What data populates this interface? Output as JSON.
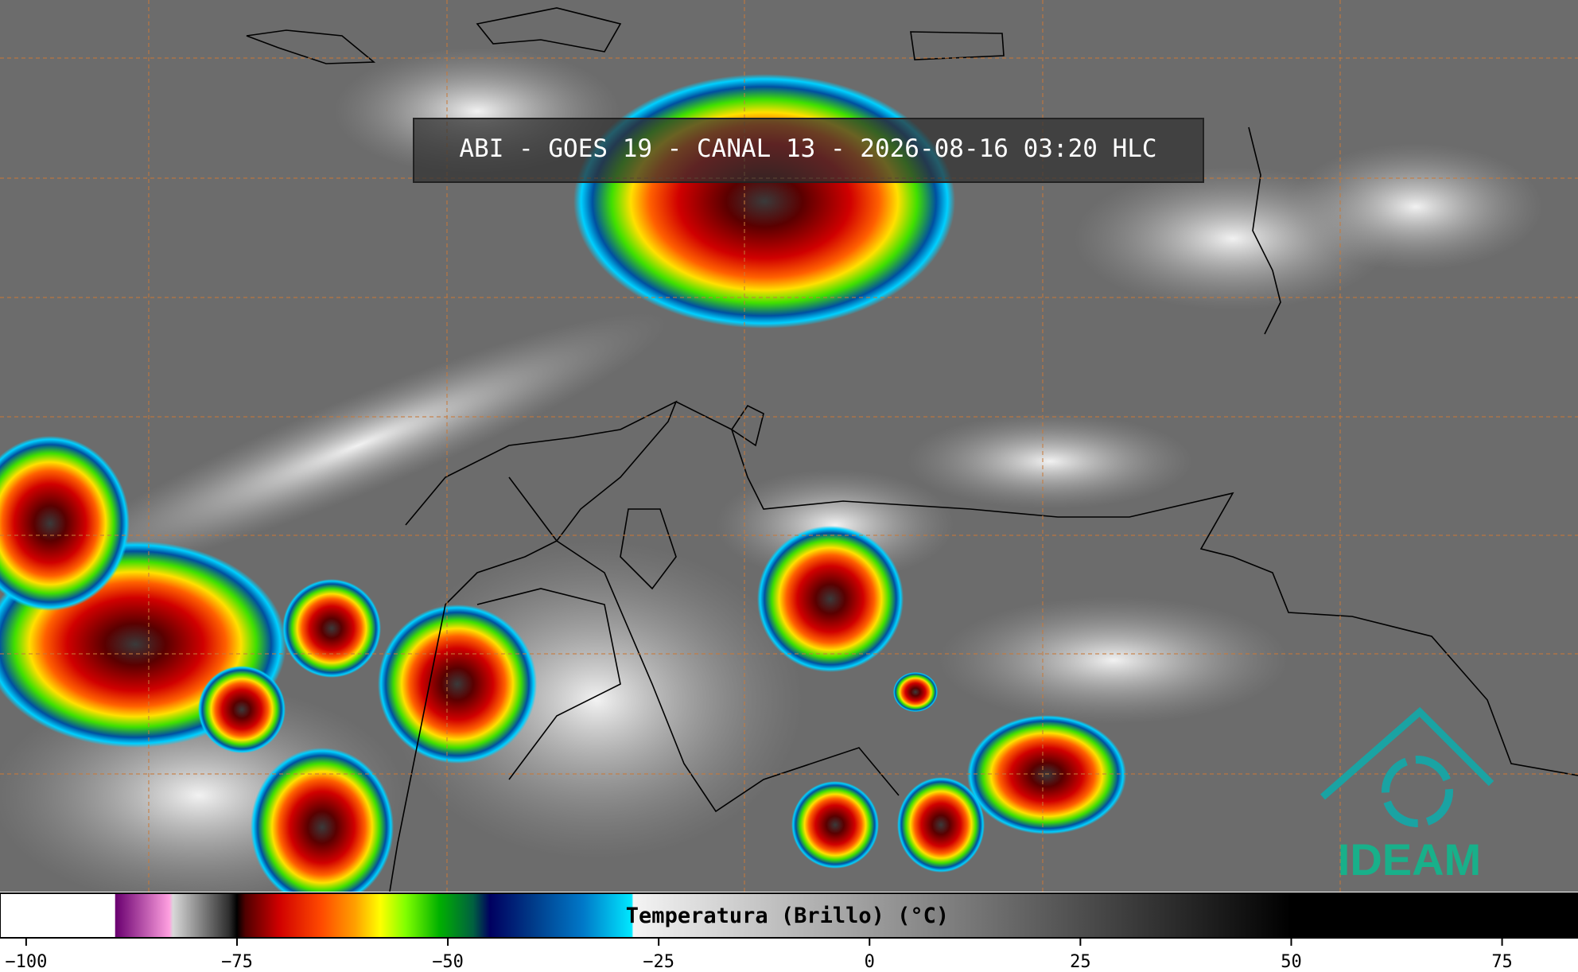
{
  "title": "ABI - GOES 19 - CANAL 13 - 2026-08-16 03:20 HLC",
  "logo": "IDEAM",
  "colorbar": {
    "label": "Temperatura (Brillo) (°C)",
    "lim": [
      -103.1,
      84
    ],
    "ticks": [
      {
        "value": -100,
        "label": "−100"
      },
      {
        "value": -75,
        "label": "−75"
      },
      {
        "value": -50,
        "label": "−50"
      },
      {
        "value": -25,
        "label": "−25"
      },
      0,
      25,
      50,
      75
    ],
    "colors": [
      {
        "value": -103.1,
        "color": "#ffffff"
      },
      {
        "value": -89.5,
        "color": "#ffffff"
      },
      {
        "value": -89.4,
        "color": "#6a0070"
      },
      {
        "value": -83,
        "color": "#ffa0e0"
      },
      {
        "value": -82.6,
        "color": "#d8d8d8"
      },
      {
        "value": -76,
        "color": "#303030"
      },
      {
        "value": -75,
        "color": "#000000"
      },
      {
        "value": -74,
        "color": "#500000"
      },
      {
        "value": -70,
        "color": "#d00000"
      },
      {
        "value": -65,
        "color": "#ff4a00"
      },
      {
        "value": -61,
        "color": "#ffa000"
      },
      {
        "value": -58,
        "color": "#ffff00"
      },
      {
        "value": -55,
        "color": "#80ff00"
      },
      {
        "value": -51,
        "color": "#00b000"
      },
      {
        "value": -47,
        "color": "#006040"
      },
      {
        "value": -45,
        "color": "#000060"
      },
      {
        "value": -40,
        "color": "#003a88"
      },
      {
        "value": -34,
        "color": "#0078c8"
      },
      {
        "value": -28.2,
        "color": "#00e8ff"
      },
      {
        "value": -28,
        "color": "#f4f4f4"
      },
      {
        "value": 50,
        "color": "#000000"
      },
      {
        "value": 84,
        "color": "#000000"
      }
    ]
  }
}
